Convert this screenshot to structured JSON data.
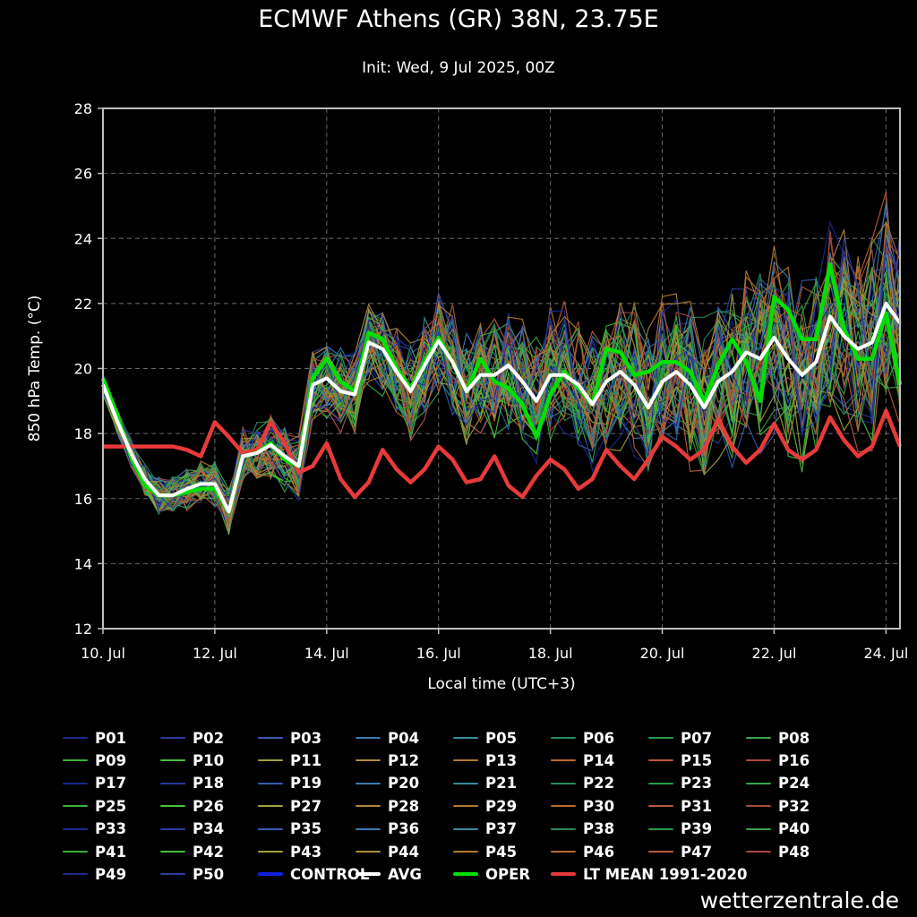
{
  "header": {
    "title": "ECMWF Athens (GR) 38N, 23.75E",
    "subtitle": "Init: Wed, 9 Jul 2025, 00Z"
  },
  "watermark": "wetterzentrale.de",
  "colors": {
    "background": "#000000",
    "grid": "#6b6b6b",
    "axis": "#bdbdbd",
    "control": "#1020e0",
    "avg": "#ffffff",
    "oper": "#00e000",
    "lt_mean": "#e83a3a",
    "member_palette": [
      "#1a2a8c",
      "#2a3c9a",
      "#3a5ab0",
      "#3a7ab0",
      "#3a8a9a",
      "#2a8a5a",
      "#2a9a4a",
      "#3aa04a",
      "#3ab03a",
      "#4ac03a",
      "#a0a040",
      "#b08a3a",
      "#b07a30",
      "#b86a30",
      "#b85a40",
      "#a84a40"
    ]
  },
  "chart_data": {
    "type": "line",
    "xlabel": "Local time (UTC+3)",
    "ylabel": "850 hPa Temp. (°C)",
    "ylim": [
      12,
      28
    ],
    "yticks": [
      12,
      14,
      16,
      18,
      20,
      22,
      24,
      26,
      28
    ],
    "x_unit": "days from 10 Jul 2025 00:00",
    "xlim": [
      0,
      14.25
    ],
    "xticks": [
      {
        "x": 0,
        "label": "10. Jul"
      },
      {
        "x": 2,
        "label": "12. Jul"
      },
      {
        "x": 4,
        "label": "14. Jul"
      },
      {
        "x": 6,
        "label": "16. Jul"
      },
      {
        "x": 8,
        "label": "18. Jul"
      },
      {
        "x": 10,
        "label": "20. Jul"
      },
      {
        "x": 12,
        "label": "22. Jul"
      },
      {
        "x": 14,
        "label": "24. Jul"
      }
    ],
    "grid": true,
    "legend_position": "bottom",
    "series": [
      {
        "name": "LT MEAN 1991-2020",
        "color": "#e83a3a",
        "x": [
          0,
          0.25,
          0.5,
          0.75,
          1,
          1.25,
          1.5,
          1.75,
          2,
          2.25,
          2.5,
          2.75,
          3,
          3.25,
          3.5,
          3.75,
          4,
          4.25,
          4.5,
          4.75,
          5,
          5.25,
          5.5,
          5.75,
          6,
          6.25,
          6.5,
          6.75,
          7,
          7.25,
          7.5,
          7.75,
          8,
          8.25,
          8.5,
          8.75,
          9,
          9.25,
          9.5,
          9.75,
          10,
          10.25,
          10.5,
          10.75,
          11,
          11.25,
          11.5,
          11.75,
          12,
          12.25,
          12.5,
          12.75,
          13,
          13.25,
          13.5,
          13.75,
          14,
          14.25
        ],
        "values": [
          17.6,
          17.6,
          17.6,
          17.6,
          17.6,
          17.6,
          17.5,
          17.3,
          18.35,
          17.9,
          17.4,
          17.5,
          18.35,
          17.7,
          16.8,
          17.0,
          17.7,
          16.6,
          16.05,
          16.5,
          17.5,
          16.9,
          16.5,
          16.9,
          17.6,
          17.2,
          16.5,
          16.6,
          17.3,
          16.4,
          16.05,
          16.7,
          17.2,
          16.9,
          16.3,
          16.6,
          17.5,
          17.0,
          16.6,
          17.2,
          17.9,
          17.6,
          17.2,
          17.5,
          18.45,
          17.6,
          17.1,
          17.5,
          18.3,
          17.5,
          17.2,
          17.5,
          18.5,
          17.8,
          17.3,
          17.6,
          18.7,
          17.6
        ]
      },
      {
        "name": "AVG",
        "color": "#ffffff",
        "x": [
          0,
          0.25,
          0.5,
          0.75,
          1,
          1.25,
          1.5,
          1.75,
          2,
          2.25,
          2.5,
          2.75,
          3,
          3.25,
          3.5,
          3.75,
          4,
          4.25,
          4.5,
          4.75,
          5,
          5.25,
          5.5,
          5.75,
          6,
          6.25,
          6.5,
          6.75,
          7,
          7.25,
          7.5,
          7.75,
          8,
          8.25,
          8.5,
          8.75,
          9,
          9.25,
          9.5,
          9.75,
          10,
          10.25,
          10.5,
          10.75,
          11,
          11.25,
          11.5,
          11.75,
          12,
          12.25,
          12.5,
          12.75,
          13,
          13.25,
          13.5,
          13.75,
          14,
          14.25
        ],
        "values": [
          19.5,
          18.4,
          17.4,
          16.6,
          16.1,
          16.1,
          16.3,
          16.45,
          16.45,
          15.6,
          17.3,
          17.4,
          17.65,
          17.3,
          17.0,
          19.5,
          19.7,
          19.3,
          19.2,
          20.8,
          20.6,
          19.9,
          19.3,
          20.1,
          20.85,
          20.2,
          19.3,
          19.8,
          19.8,
          20.1,
          19.6,
          19.0,
          19.8,
          19.8,
          19.5,
          18.9,
          19.6,
          19.9,
          19.5,
          18.8,
          19.6,
          19.9,
          19.5,
          18.8,
          19.6,
          19.9,
          20.5,
          20.3,
          20.95,
          20.3,
          19.8,
          20.2,
          21.6,
          21.0,
          20.6,
          20.8,
          22.0,
          21.4
        ]
      },
      {
        "name": "OPER",
        "color": "#00e000",
        "x": [
          0,
          0.25,
          0.5,
          0.75,
          1,
          1.25,
          1.5,
          1.75,
          2,
          2.25,
          2.5,
          2.75,
          3,
          3.25,
          3.5,
          3.75,
          4,
          4.25,
          4.5,
          4.75,
          5,
          5.25,
          5.5,
          5.75,
          6,
          6.25,
          6.5,
          6.75,
          7,
          7.25,
          7.5,
          7.75,
          8,
          8.25,
          8.5,
          8.75,
          9,
          9.25,
          9.5,
          9.75,
          10,
          10.25,
          10.5,
          10.75,
          11,
          11.25,
          11.5,
          11.75,
          12,
          12.25,
          12.5,
          12.75,
          13,
          13.25,
          13.5,
          13.75,
          14,
          14.25
        ],
        "values": [
          19.7,
          18.6,
          17.3,
          16.4,
          16.1,
          16.1,
          16.2,
          16.3,
          16.3,
          15.6,
          17.3,
          17.4,
          17.7,
          17.2,
          17.0,
          19.7,
          20.3,
          19.6,
          19.3,
          21.1,
          20.9,
          20.0,
          19.4,
          20.2,
          20.95,
          20.2,
          19.3,
          20.3,
          19.6,
          19.4,
          18.9,
          17.9,
          19.2,
          19.9,
          19.4,
          18.9,
          20.6,
          20.5,
          19.8,
          19.9,
          20.2,
          20.2,
          19.9,
          19.0,
          20.1,
          20.9,
          20.2,
          19.0,
          22.2,
          21.8,
          20.9,
          20.9,
          23.2,
          21.2,
          20.3,
          20.3,
          21.7,
          19.5
        ]
      }
    ]
  },
  "legend": {
    "members": [
      "P01",
      "P02",
      "P03",
      "P04",
      "P05",
      "P06",
      "P07",
      "P08",
      "P09",
      "P10",
      "P11",
      "P12",
      "P13",
      "P14",
      "P15",
      "P16",
      "P17",
      "P18",
      "P19",
      "P20",
      "P21",
      "P22",
      "P23",
      "P24",
      "P25",
      "P26",
      "P27",
      "P28",
      "P29",
      "P30",
      "P31",
      "P32",
      "P33",
      "P34",
      "P35",
      "P36",
      "P37",
      "P38",
      "P39",
      "P40",
      "P41",
      "P42",
      "P43",
      "P44",
      "P45",
      "P46",
      "P47",
      "P48",
      "P49",
      "P50"
    ],
    "special": [
      {
        "label": "CONTROL",
        "color": "#1020e0"
      },
      {
        "label": "AVG",
        "color": "#ffffff"
      },
      {
        "label": "OPER",
        "color": "#00e000"
      },
      {
        "label": "LT MEAN 1991-2020",
        "color": "#e83a3a"
      }
    ]
  }
}
